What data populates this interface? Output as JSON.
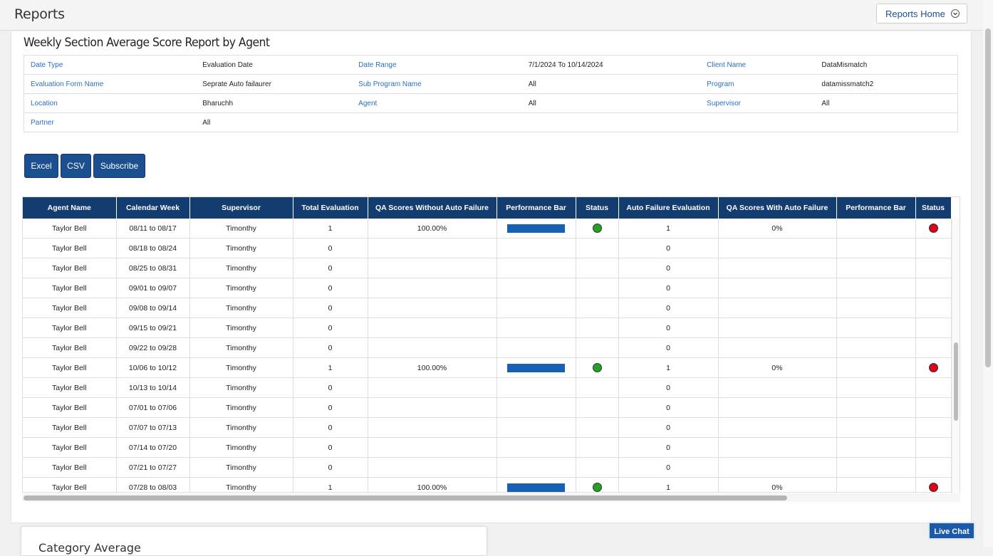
{
  "header": {
    "title": "Reports",
    "reports_home": "Reports Home"
  },
  "report": {
    "title": "Weekly Section Average Score Report by Agent"
  },
  "filters": [
    [
      {
        "k": "Date Type",
        "v": "Evaluation Date"
      },
      {
        "k": "Date Range",
        "v": "7/1/2024 To 10/14/2024"
      },
      {
        "k": "Client Name",
        "v": "DataMismatch"
      }
    ],
    [
      {
        "k": "Evaluation Form Name",
        "v": "Seprate Auto failaurer"
      },
      {
        "k": "Sub Program Name",
        "v": "All"
      },
      {
        "k": "Program",
        "v": "datamissmatch2"
      }
    ],
    [
      {
        "k": "Location",
        "v": "Bharuchh"
      },
      {
        "k": "Agent",
        "v": "All"
      },
      {
        "k": "Supervisor",
        "v": "All"
      }
    ],
    [
      {
        "k": "Partner",
        "v": "All"
      },
      {
        "k": "",
        "v": ""
      },
      {
        "k": "",
        "v": ""
      }
    ]
  ],
  "buttons": {
    "excel": "Excel",
    "csv": "CSV",
    "subscribe": "Subscribe"
  },
  "table": {
    "columns": [
      "Agent Name",
      "Calendar Week",
      "Supervisor",
      "Total Evaluation",
      "QA Scores Without Auto Failure",
      "Performance Bar",
      "Status",
      "Auto Failure Evaluation",
      "QA Scores With Auto Failure",
      "Performance Bar",
      "Status"
    ],
    "rows": [
      {
        "agent": "Taylor Bell",
        "week": "08/11 to 08/17",
        "supervisor": "Timonthy",
        "total": "1",
        "qa_no_af": "100.00%",
        "bar1": 1,
        "status1": "green",
        "af_eval": "1",
        "qa_af": "0%",
        "bar2": 0,
        "status2": "red"
      },
      {
        "agent": "Taylor Bell",
        "week": "08/18 to 08/24",
        "supervisor": "Timonthy",
        "total": "0",
        "qa_no_af": "",
        "bar1": 0,
        "status1": "",
        "af_eval": "0",
        "qa_af": "",
        "bar2": 0,
        "status2": ""
      },
      {
        "agent": "Taylor Bell",
        "week": "08/25 to 08/31",
        "supervisor": "Timonthy",
        "total": "0",
        "qa_no_af": "",
        "bar1": 0,
        "status1": "",
        "af_eval": "0",
        "qa_af": "",
        "bar2": 0,
        "status2": ""
      },
      {
        "agent": "Taylor Bell",
        "week": "09/01 to 09/07",
        "supervisor": "Timonthy",
        "total": "0",
        "qa_no_af": "",
        "bar1": 0,
        "status1": "",
        "af_eval": "0",
        "qa_af": "",
        "bar2": 0,
        "status2": ""
      },
      {
        "agent": "Taylor Bell",
        "week": "09/08 to 09/14",
        "supervisor": "Timonthy",
        "total": "0",
        "qa_no_af": "",
        "bar1": 0,
        "status1": "",
        "af_eval": "0",
        "qa_af": "",
        "bar2": 0,
        "status2": ""
      },
      {
        "agent": "Taylor Bell",
        "week": "09/15 to 09/21",
        "supervisor": "Timonthy",
        "total": "0",
        "qa_no_af": "",
        "bar1": 0,
        "status1": "",
        "af_eval": "0",
        "qa_af": "",
        "bar2": 0,
        "status2": ""
      },
      {
        "agent": "Taylor Bell",
        "week": "09/22 to 09/28",
        "supervisor": "Timonthy",
        "total": "0",
        "qa_no_af": "",
        "bar1": 0,
        "status1": "",
        "af_eval": "0",
        "qa_af": "",
        "bar2": 0,
        "status2": ""
      },
      {
        "agent": "Taylor Bell",
        "week": "10/06 to 10/12",
        "supervisor": "Timonthy",
        "total": "1",
        "qa_no_af": "100.00%",
        "bar1": 1,
        "status1": "green",
        "af_eval": "1",
        "qa_af": "0%",
        "bar2": 0,
        "status2": "red"
      },
      {
        "agent": "Taylor Bell",
        "week": "10/13 to 10/14",
        "supervisor": "Timonthy",
        "total": "0",
        "qa_no_af": "",
        "bar1": 0,
        "status1": "",
        "af_eval": "0",
        "qa_af": "",
        "bar2": 0,
        "status2": ""
      },
      {
        "agent": "Taylor Bell",
        "week": "07/01 to 07/06",
        "supervisor": "Timonthy",
        "total": "0",
        "qa_no_af": "",
        "bar1": 0,
        "status1": "",
        "af_eval": "0",
        "qa_af": "",
        "bar2": 0,
        "status2": ""
      },
      {
        "agent": "Taylor Bell",
        "week": "07/07 to 07/13",
        "supervisor": "Timonthy",
        "total": "0",
        "qa_no_af": "",
        "bar1": 0,
        "status1": "",
        "af_eval": "0",
        "qa_af": "",
        "bar2": 0,
        "status2": ""
      },
      {
        "agent": "Taylor Bell",
        "week": "07/14 to 07/20",
        "supervisor": "Timonthy",
        "total": "0",
        "qa_no_af": "",
        "bar1": 0,
        "status1": "",
        "af_eval": "0",
        "qa_af": "",
        "bar2": 0,
        "status2": ""
      },
      {
        "agent": "Taylor Bell",
        "week": "07/21 to 07/27",
        "supervisor": "Timonthy",
        "total": "0",
        "qa_no_af": "",
        "bar1": 0,
        "status1": "",
        "af_eval": "0",
        "qa_af": "",
        "bar2": 0,
        "status2": ""
      },
      {
        "agent": "Taylor Bell",
        "week": "07/28 to 08/03",
        "supervisor": "Timonthy",
        "total": "1",
        "qa_no_af": "100.00%",
        "bar1": 1,
        "status1": "green",
        "af_eval": "1",
        "qa_af": "0%",
        "bar2": 0,
        "status2": "red"
      }
    ]
  },
  "category_card": {
    "title": "Category Average"
  },
  "live_chat": "Live Chat",
  "colors": {
    "header_bg": "#133d70",
    "button_bg": "#1c4f8f",
    "bar": "#1660b6",
    "status_green": "#23a123",
    "status_red": "#e00018"
  }
}
